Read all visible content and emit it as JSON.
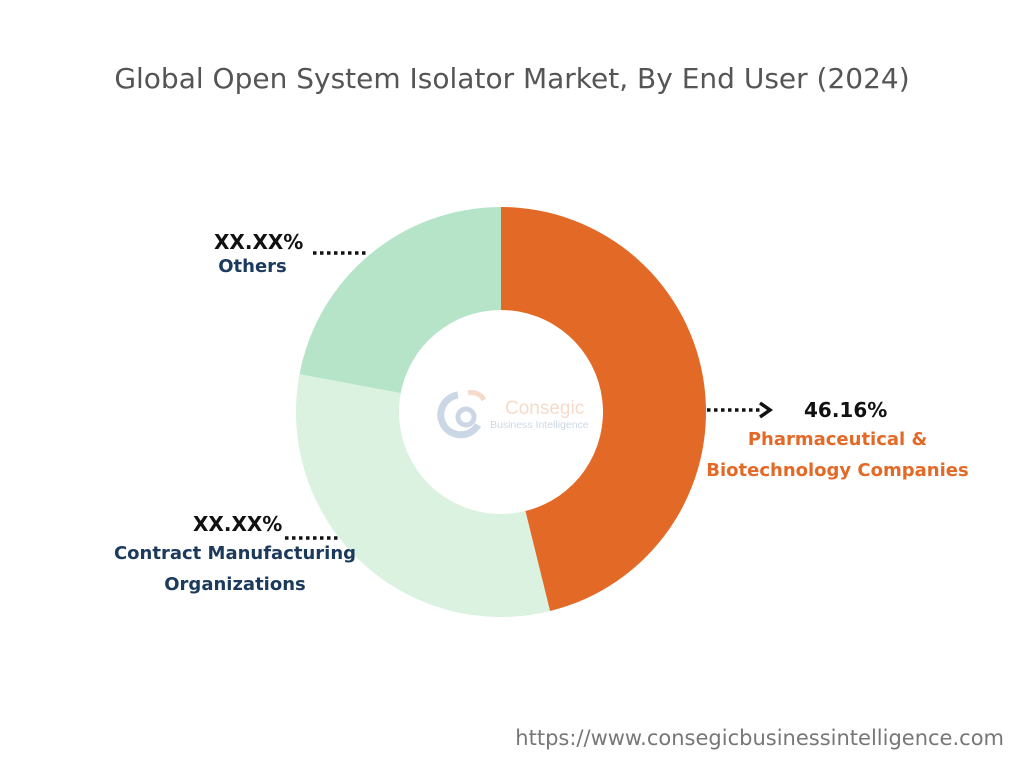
{
  "chart_data": {
    "type": "pie",
    "subtype": "donut",
    "title": "Global Open System Isolator Market, By End User (2024)",
    "slices": [
      {
        "label": "Pharmaceutical & Biotechnology Companies",
        "value": 46.16,
        "display": "46.16%",
        "color": "#E36A26",
        "label_color": "#E36A26"
      },
      {
        "label": "Contract Manufacturing Organizations",
        "value": 31.8,
        "display": "XX.XX%",
        "color": "#DAF2DF",
        "label_color": "#1B3A5C"
      },
      {
        "label": "Others",
        "value": 22.04,
        "display": "XX.XX%",
        "color": "#B5E4C8",
        "label_color": "#1B3A5C"
      }
    ],
    "start": "top",
    "direction": "clockwise"
  },
  "watermark": {
    "line1": "Consegic",
    "line2": "Business Intelligence"
  },
  "footer": {
    "url": "https://www.consegicbusinessintelligence.com"
  }
}
